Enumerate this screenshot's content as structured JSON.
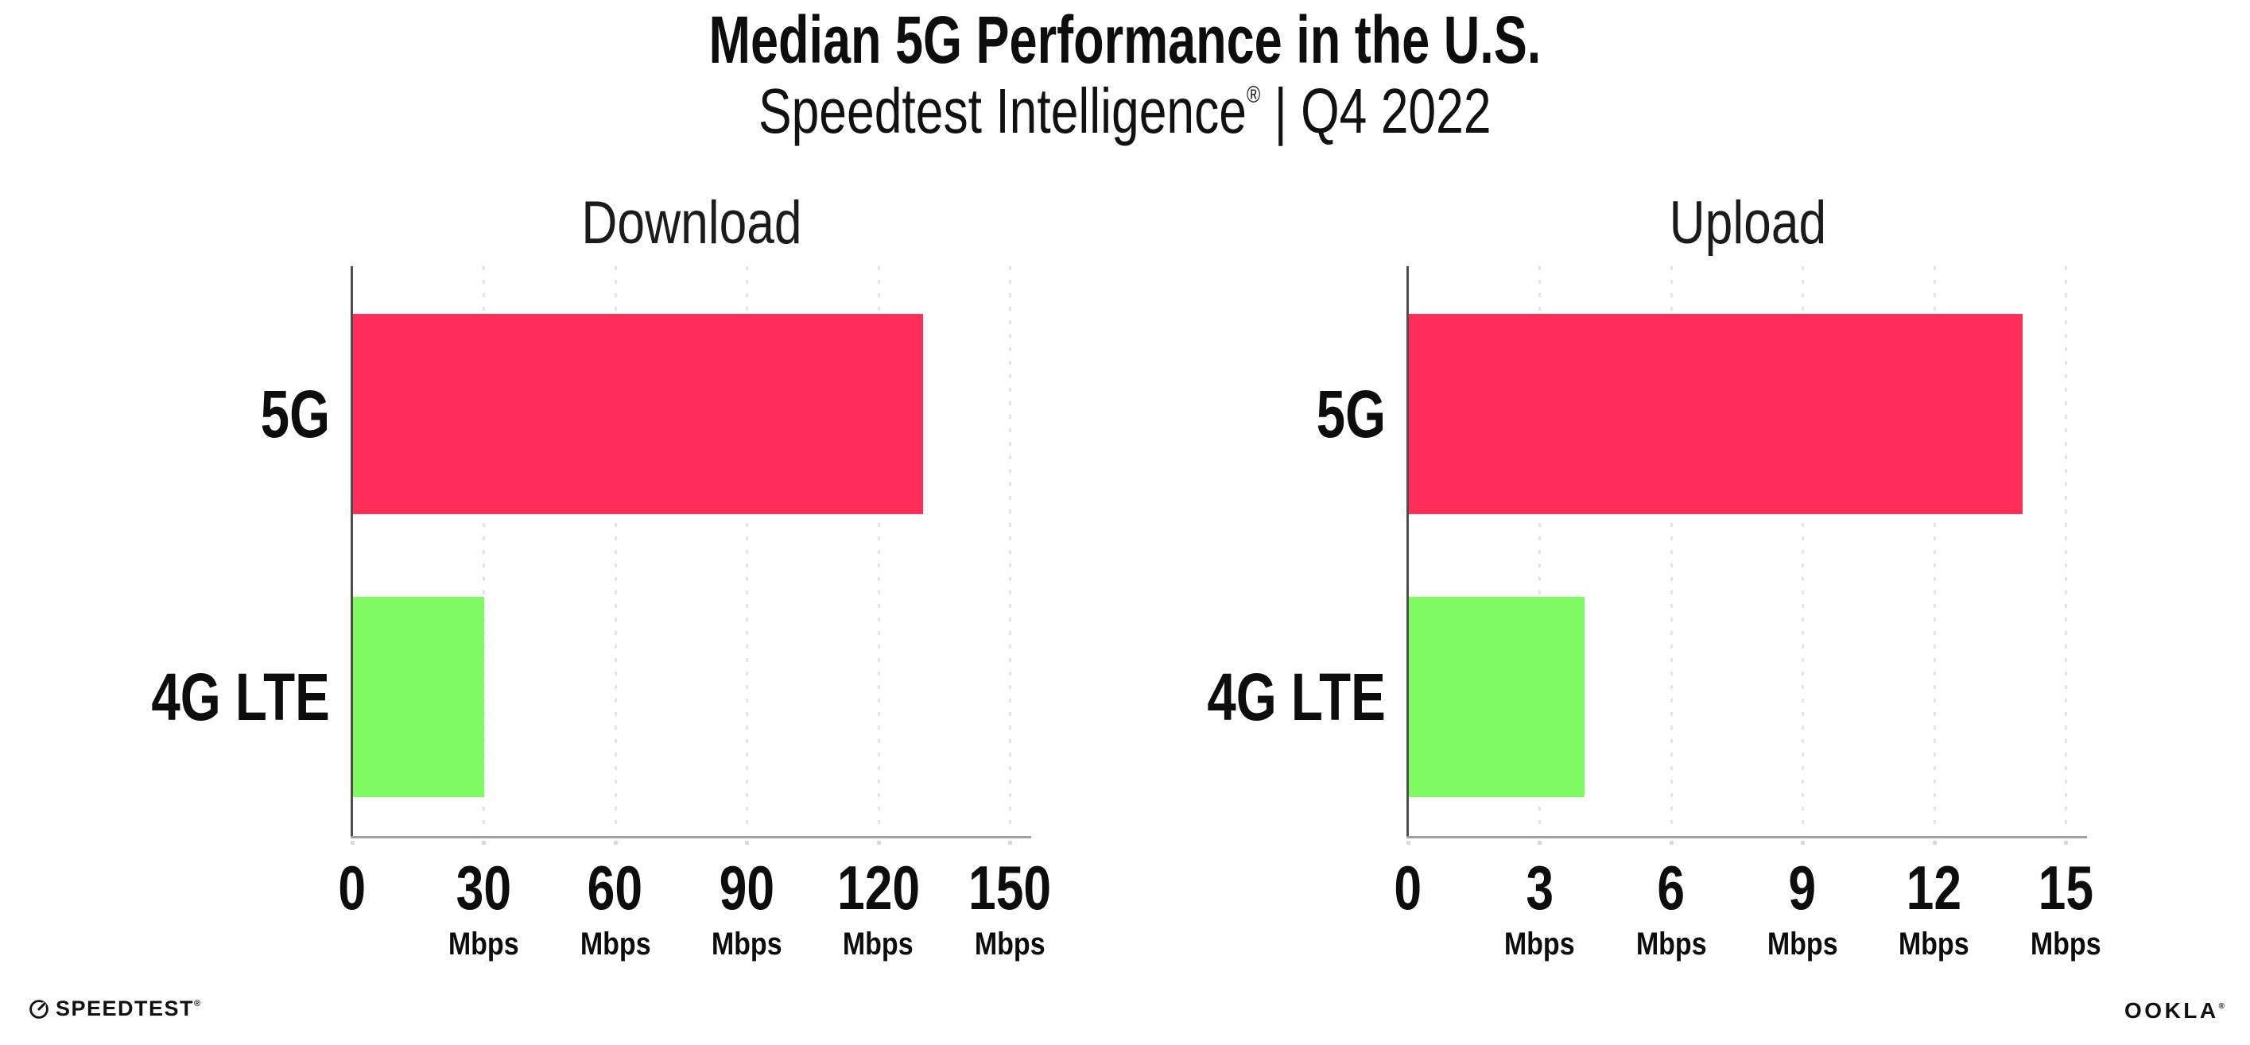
{
  "header": {
    "title": "Median 5G Performance in the U.S.",
    "subtitle_brand": "Speedtest Intelligence",
    "subtitle_reg": "®",
    "subtitle_rest": " | Q4 2022"
  },
  "footer": {
    "speedtest_logo_text": "SPEEDTEST",
    "speedtest_reg": "®",
    "speedtest_icon": "gauge-icon",
    "ookla_logo_text": "OOKLA",
    "ookla_reg": "®"
  },
  "colors": {
    "bar_5g": "#FE2E58",
    "bar_4g_lte": "#7FFC64",
    "gridline": "#E3E3ED",
    "x_axis": "#A0A0A5",
    "y_axis": "#4D4D4D",
    "text": "#0D0D0D"
  },
  "chart_data": [
    {
      "type": "bar",
      "orientation": "horizontal",
      "title": "Download",
      "categories": [
        "5G",
        "4G LTE"
      ],
      "values": [
        130,
        30
      ],
      "unit": "Mbps",
      "xlabel": "",
      "ylabel": "",
      "xlim": [
        0,
        150
      ],
      "xticks": [
        0,
        30,
        60,
        90,
        120,
        150
      ],
      "series_colors": [
        "#FE2E58",
        "#7FFC64"
      ],
      "grid": "vertical dotted",
      "legend": "none"
    },
    {
      "type": "bar",
      "orientation": "horizontal",
      "title": "Upload",
      "categories": [
        "5G",
        "4G LTE"
      ],
      "values": [
        14,
        4
      ],
      "unit": "Mbps",
      "xlabel": "",
      "ylabel": "",
      "xlim": [
        0,
        15
      ],
      "xticks": [
        0,
        3,
        6,
        9,
        12,
        15
      ],
      "series_colors": [
        "#FE2E58",
        "#7FFC64"
      ],
      "grid": "vertical dotted",
      "legend": "none"
    }
  ]
}
